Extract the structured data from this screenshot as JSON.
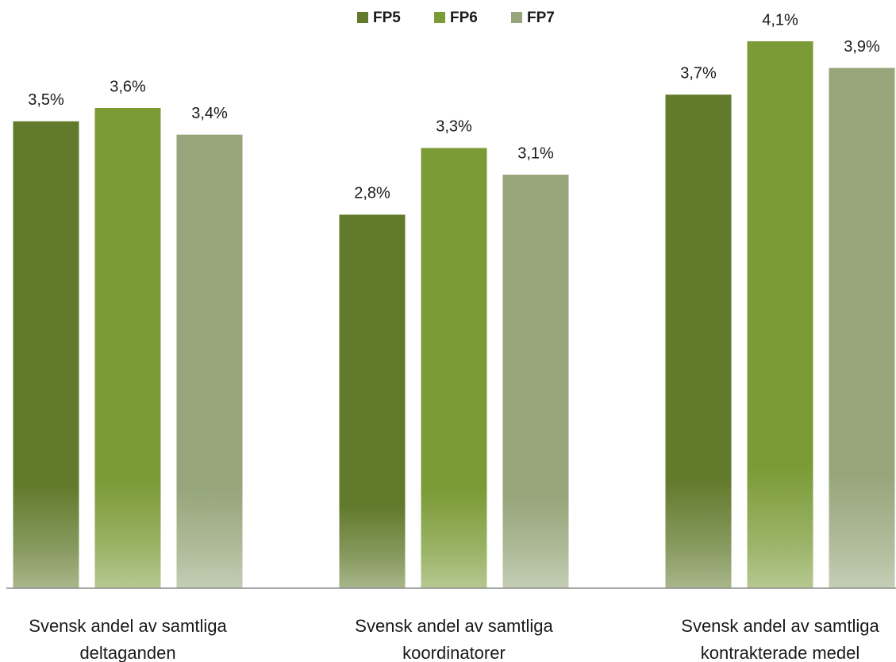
{
  "chart_data": {
    "type": "bar",
    "categories": [
      "Svensk andel av samtliga deltaganden",
      "Svensk andel av samtliga koordinatorer",
      "Svensk andel av samtliga kontrakterade medel"
    ],
    "series": [
      {
        "name": "FP5",
        "color": "#627a2c",
        "values": [
          3.5,
          2.8,
          3.7
        ],
        "value_labels": [
          "3,5%",
          "2,8%",
          "3,7%"
        ]
      },
      {
        "name": "FP6",
        "color": "#7b9b37",
        "values": [
          3.6,
          3.3,
          4.1
        ],
        "value_labels": [
          "3,6%",
          "3,3%",
          "4,1%"
        ]
      },
      {
        "name": "FP7",
        "color": "#96a57a",
        "values": [
          3.4,
          3.1,
          3.9
        ],
        "value_labels": [
          "3,4%",
          "3,1%",
          "3,9%"
        ]
      }
    ],
    "legend": "top"
  }
}
